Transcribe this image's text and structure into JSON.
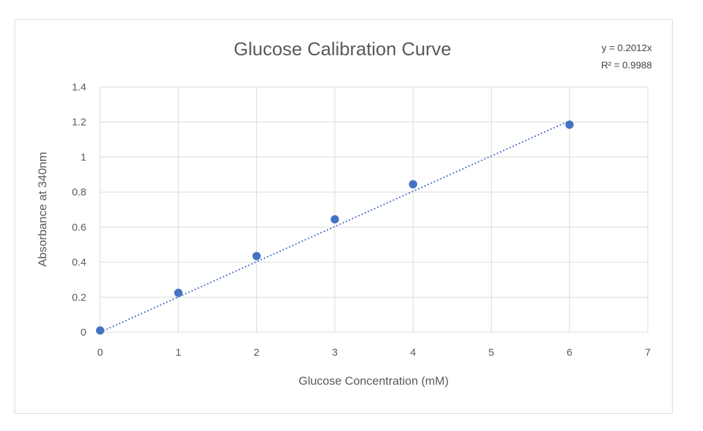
{
  "chart_data": {
    "type": "scatter",
    "title": "Glucose Calibration Curve",
    "xlabel": "Glucose Concentration (mM)",
    "ylabel": "Absorbance at 340nm",
    "xlim": [
      0,
      7
    ],
    "ylim": [
      0,
      1.4
    ],
    "x_ticks": [
      "0",
      "1",
      "2",
      "3",
      "4",
      "5",
      "6",
      "7"
    ],
    "y_ticks": [
      "0",
      "0.2",
      "0.4",
      "0.6",
      "0.8",
      "1",
      "1.2",
      "1.4"
    ],
    "grid": true,
    "series": [
      {
        "x": [
          0,
          1,
          2,
          3,
          4,
          6
        ],
        "y": [
          0.01,
          0.225,
          0.435,
          0.645,
          0.845,
          1.185
        ],
        "color": "#4472c4"
      }
    ],
    "trendline": {
      "slope": 0.2012,
      "x_range": [
        0,
        6
      ],
      "style": "dotted",
      "color": "#4472c4",
      "equation": "y = 0.2012x",
      "r_squared": "R² = 0.9988"
    }
  }
}
